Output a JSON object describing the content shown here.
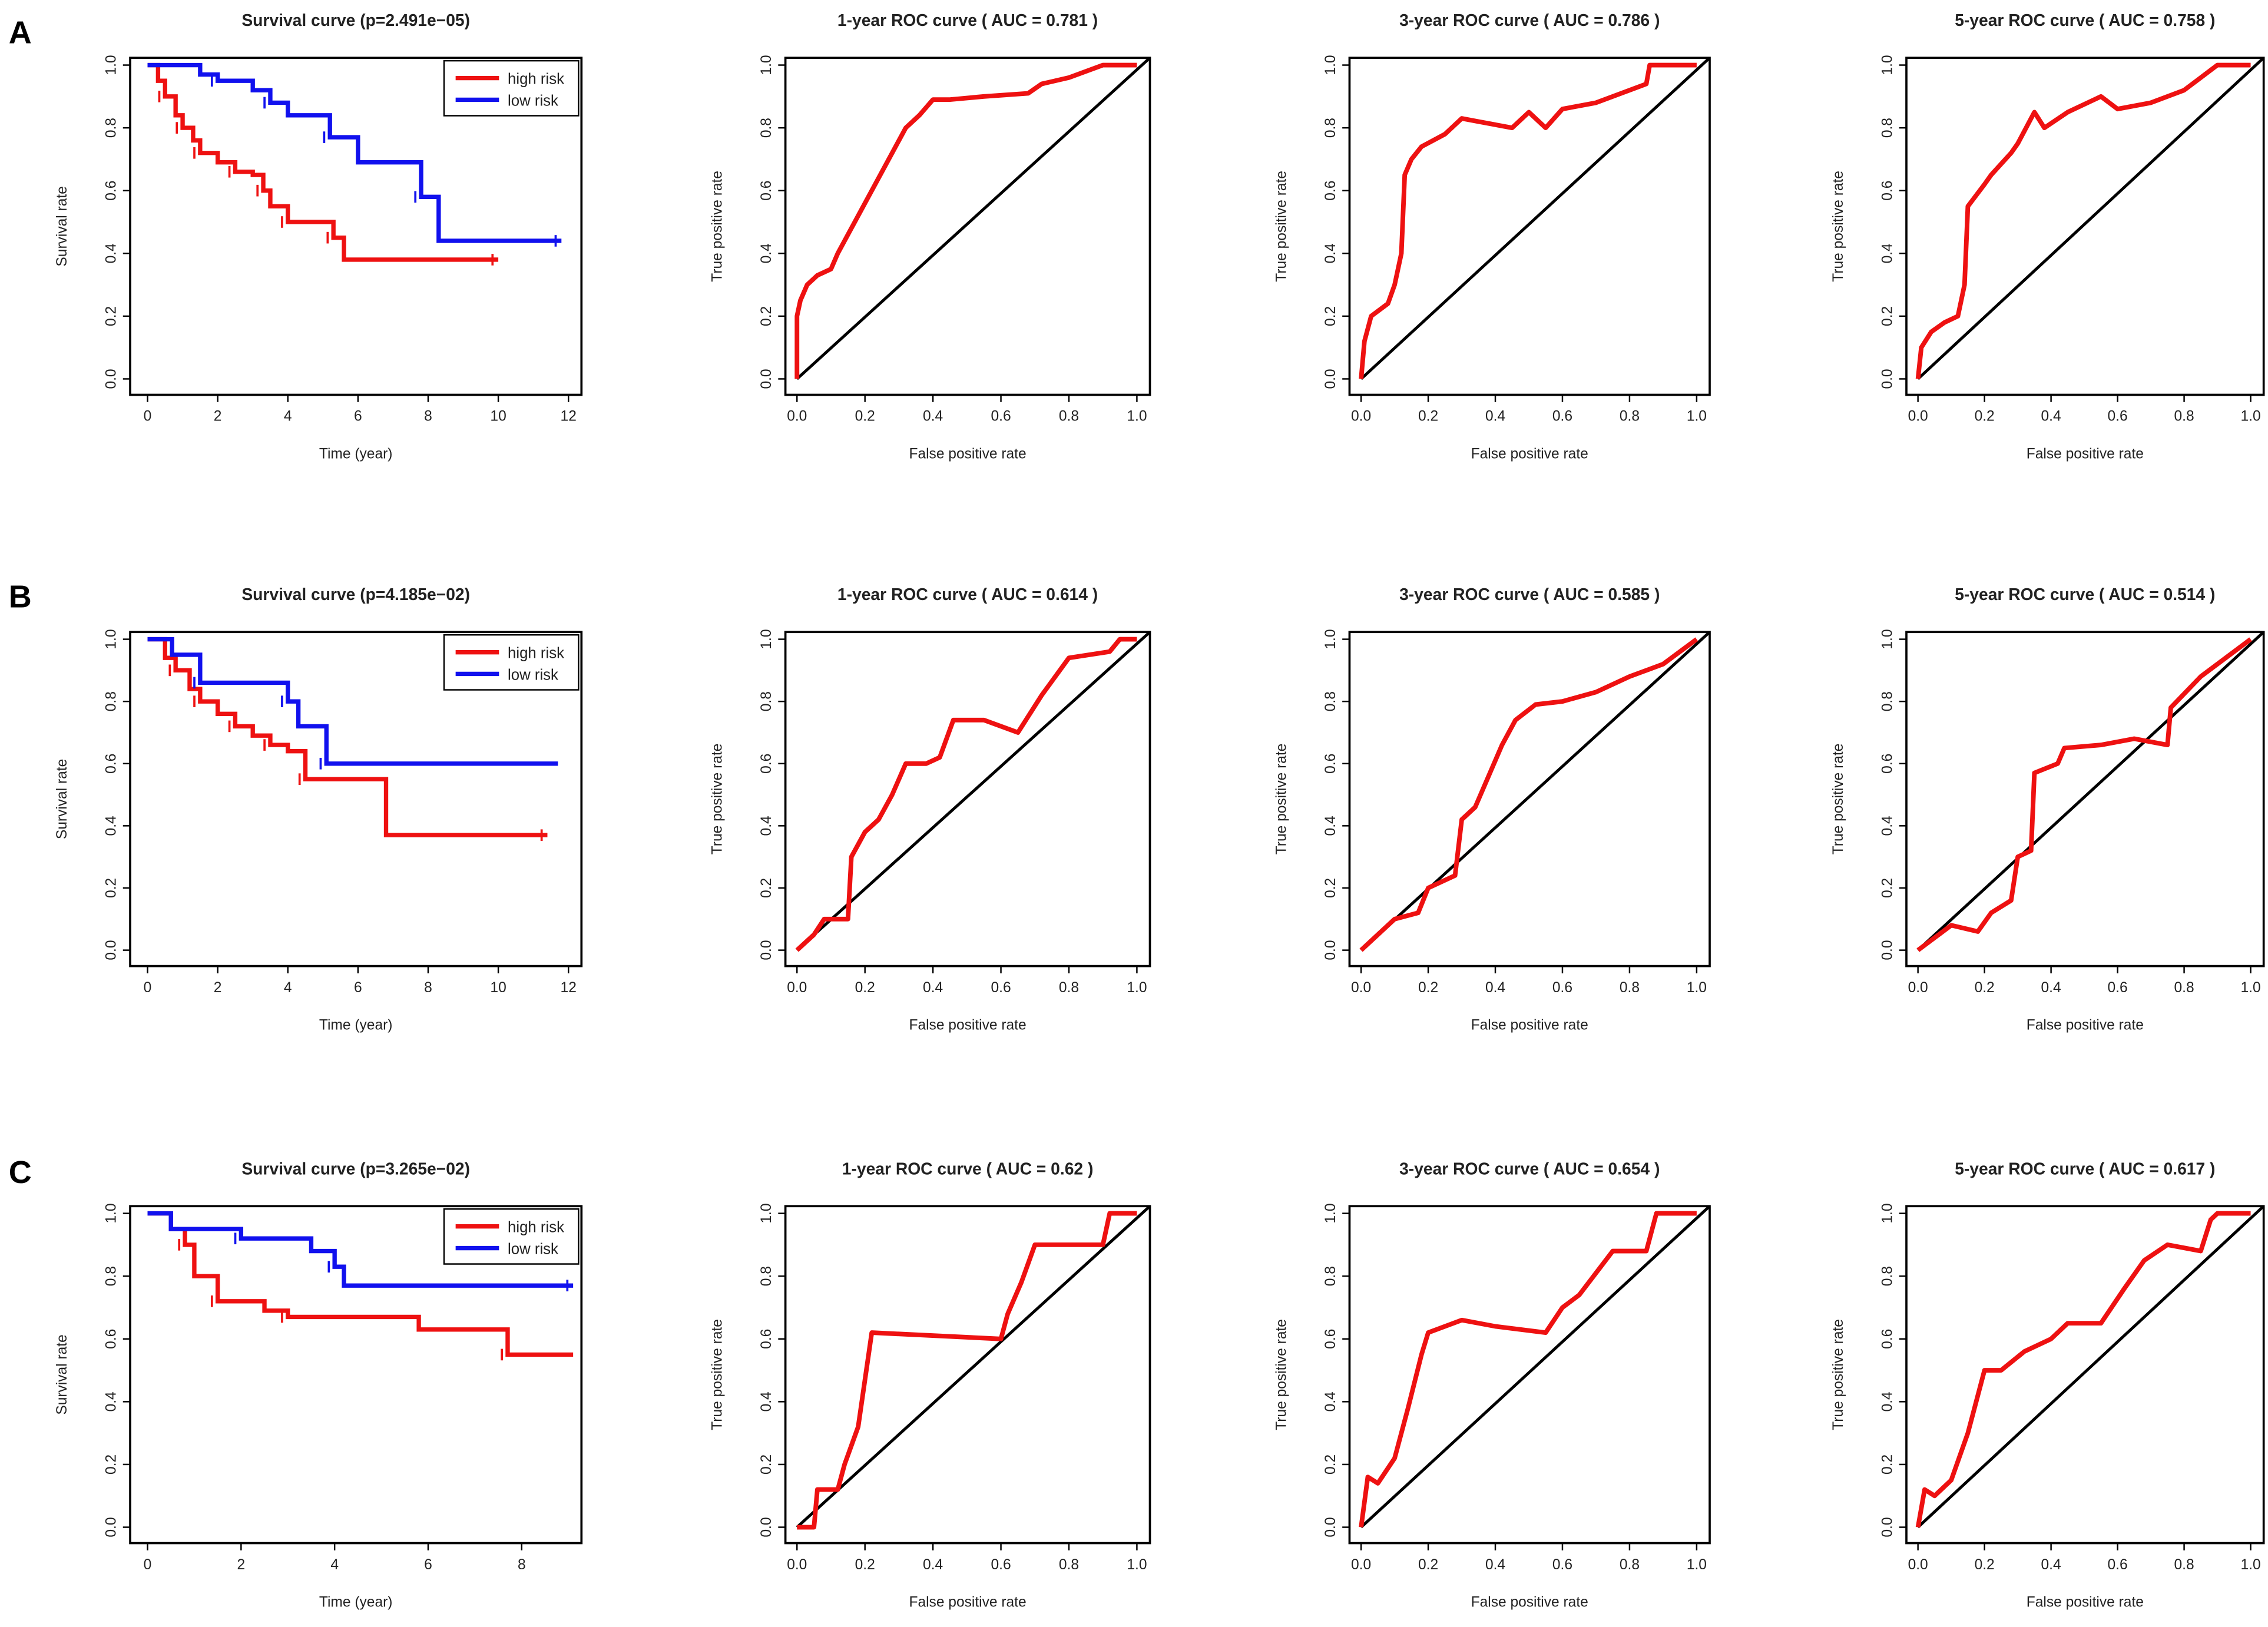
{
  "panel_labels": [
    "A",
    "B",
    "C"
  ],
  "colors": {
    "high": "#ee1111",
    "low": "#1111ee",
    "diag": "#000000",
    "roc": "#ee1111"
  },
  "chart_data": [
    {
      "row": 0,
      "col": 0,
      "type": "line",
      "title": "Survival curve (p=2.491e−05)",
      "xlabel": "Time (year)",
      "ylabel": "Survival rate",
      "xlim": [
        0,
        12
      ],
      "ylim": [
        0,
        1
      ],
      "xticks": [
        "0",
        "2",
        "4",
        "6",
        "8",
        "10",
        "12"
      ],
      "yticks": [
        "0.0",
        "0.2",
        "0.4",
        "0.6",
        "0.8",
        "1.0"
      ],
      "legend": [
        "high risk",
        "low risk"
      ],
      "legend_position": "top-right",
      "series": [
        {
          "name": "high risk",
          "x": [
            0,
            0.3,
            0.5,
            0.8,
            1,
            1.3,
            1.5,
            2,
            2.5,
            3,
            3.3,
            3.5,
            4,
            5,
            5.3,
            5.6,
            10
          ],
          "y": [
            1,
            0.95,
            0.9,
            0.84,
            0.8,
            0.76,
            0.72,
            0.69,
            0.66,
            0.65,
            0.6,
            0.55,
            0.5,
            0.5,
            0.45,
            0.38,
            0.38
          ]
        },
        {
          "name": "low risk",
          "x": [
            0,
            1.5,
            2,
            3,
            3.5,
            4,
            5.2,
            6,
            7.8,
            8.3,
            11.8
          ],
          "y": [
            1,
            0.97,
            0.95,
            0.92,
            0.88,
            0.84,
            0.77,
            0.69,
            0.58,
            0.44,
            0.44
          ]
        }
      ]
    },
    {
      "row": 0,
      "col": 1,
      "type": "line",
      "title": "1-year ROC curve ( AUC =  0.781 )",
      "auc": 0.781,
      "xlabel": "False positive rate",
      "ylabel": "True positive rate",
      "xlim": [
        0,
        1
      ],
      "ylim": [
        0,
        1
      ],
      "xticks": [
        "0.0",
        "0.2",
        "0.4",
        "0.6",
        "0.8",
        "1.0"
      ],
      "yticks": [
        "0.0",
        "0.2",
        "0.4",
        "0.6",
        "0.8",
        "1.0"
      ],
      "x": [
        0,
        0,
        0.01,
        0.03,
        0.06,
        0.1,
        0.12,
        0.16,
        0.2,
        0.24,
        0.28,
        0.32,
        0.36,
        0.4,
        0.45,
        0.55,
        0.68,
        0.72,
        0.8,
        0.85,
        0.9,
        1
      ],
      "y": [
        0,
        0.2,
        0.25,
        0.3,
        0.33,
        0.35,
        0.4,
        0.48,
        0.56,
        0.64,
        0.72,
        0.8,
        0.84,
        0.89,
        0.89,
        0.9,
        0.91,
        0.94,
        0.96,
        0.98,
        1,
        1
      ]
    },
    {
      "row": 0,
      "col": 2,
      "type": "line",
      "title": "3-year ROC curve ( AUC =  0.786 )",
      "auc": 0.786,
      "xlabel": "False positive rate",
      "ylabel": "True positive rate",
      "xlim": [
        0,
        1
      ],
      "ylim": [
        0,
        1
      ],
      "xticks": [
        "0.0",
        "0.2",
        "0.4",
        "0.6",
        "0.8",
        "1.0"
      ],
      "yticks": [
        "0.0",
        "0.2",
        "0.4",
        "0.6",
        "0.8",
        "1.0"
      ],
      "x": [
        0,
        0.01,
        0.03,
        0.08,
        0.1,
        0.12,
        0.13,
        0.15,
        0.18,
        0.25,
        0.3,
        0.35,
        0.45,
        0.5,
        0.55,
        0.6,
        0.7,
        0.8,
        0.85,
        0.86,
        0.95,
        1
      ],
      "y": [
        0,
        0.12,
        0.2,
        0.24,
        0.3,
        0.4,
        0.65,
        0.7,
        0.74,
        0.78,
        0.83,
        0.82,
        0.8,
        0.85,
        0.8,
        0.86,
        0.88,
        0.92,
        0.94,
        1,
        1,
        1
      ]
    },
    {
      "row": 0,
      "col": 3,
      "type": "line",
      "title": "5-year ROC curve ( AUC =  0.758 )",
      "auc": 0.758,
      "xlabel": "False positive rate",
      "ylabel": "True positive rate",
      "xlim": [
        0,
        1
      ],
      "ylim": [
        0,
        1
      ],
      "xticks": [
        "0.0",
        "0.2",
        "0.4",
        "0.6",
        "0.8",
        "1.0"
      ],
      "yticks": [
        "0.0",
        "0.2",
        "0.4",
        "0.6",
        "0.8",
        "1.0"
      ],
      "x": [
        0,
        0.01,
        0.04,
        0.08,
        0.12,
        0.14,
        0.15,
        0.2,
        0.22,
        0.28,
        0.3,
        0.35,
        0.38,
        0.45,
        0.55,
        0.6,
        0.7,
        0.8,
        0.85,
        0.9,
        1
      ],
      "y": [
        0,
        0.1,
        0.15,
        0.18,
        0.2,
        0.3,
        0.55,
        0.62,
        0.65,
        0.72,
        0.75,
        0.85,
        0.8,
        0.85,
        0.9,
        0.86,
        0.88,
        0.92,
        0.96,
        1,
        1
      ]
    },
    {
      "row": 1,
      "col": 0,
      "type": "line",
      "title": "Survival curve (p=4.185e−02)",
      "xlabel": "Time (year)",
      "ylabel": "Survival rate",
      "xlim": [
        0,
        12
      ],
      "ylim": [
        0,
        1
      ],
      "xticks": [
        "0",
        "2",
        "4",
        "6",
        "8",
        "10",
        "12"
      ],
      "yticks": [
        "0.0",
        "0.2",
        "0.4",
        "0.6",
        "0.8",
        "1.0"
      ],
      "legend": [
        "high risk",
        "low risk"
      ],
      "legend_position": "top-right",
      "series": [
        {
          "name": "high risk",
          "x": [
            0,
            0.5,
            0.8,
            1.2,
            1.5,
            2,
            2.5,
            3,
            3.5,
            4,
            4.5,
            6.8,
            11.4
          ],
          "y": [
            1,
            0.94,
            0.9,
            0.84,
            0.8,
            0.76,
            0.72,
            0.69,
            0.66,
            0.64,
            0.55,
            0.37,
            0.37
          ]
        },
        {
          "name": "low risk",
          "x": [
            0,
            0.7,
            1.5,
            2,
            4,
            4.3,
            5.1,
            11.7
          ],
          "y": [
            1,
            0.95,
            0.86,
            0.86,
            0.8,
            0.72,
            0.6,
            0.6
          ]
        }
      ]
    },
    {
      "row": 1,
      "col": 1,
      "type": "line",
      "title": "1-year ROC curve ( AUC =  0.614 )",
      "auc": 0.614,
      "xlabel": "False positive rate",
      "ylabel": "True positive rate",
      "xlim": [
        0,
        1
      ],
      "ylim": [
        0,
        1
      ],
      "xticks": [
        "0.0",
        "0.2",
        "0.4",
        "0.6",
        "0.8",
        "1.0"
      ],
      "yticks": [
        "0.0",
        "0.2",
        "0.4",
        "0.6",
        "0.8",
        "1.0"
      ],
      "x": [
        0,
        0.05,
        0.08,
        0.15,
        0.16,
        0.2,
        0.24,
        0.28,
        0.32,
        0.38,
        0.42,
        0.46,
        0.55,
        0.65,
        0.72,
        0.8,
        0.92,
        0.95,
        1
      ],
      "y": [
        0,
        0.05,
        0.1,
        0.1,
        0.3,
        0.38,
        0.42,
        0.5,
        0.6,
        0.6,
        0.62,
        0.74,
        0.74,
        0.7,
        0.82,
        0.94,
        0.96,
        1,
        1
      ]
    },
    {
      "row": 1,
      "col": 2,
      "type": "line",
      "title": "3-year ROC curve ( AUC =  0.585 )",
      "auc": 0.585,
      "xlabel": "False positive rate",
      "ylabel": "True positive rate",
      "xlim": [
        0,
        1
      ],
      "ylim": [
        0,
        1
      ],
      "xticks": [
        "0.0",
        "0.2",
        "0.4",
        "0.6",
        "0.8",
        "1.0"
      ],
      "yticks": [
        "0.0",
        "0.2",
        "0.4",
        "0.6",
        "0.8",
        "1.0"
      ],
      "x": [
        0,
        0.05,
        0.1,
        0.17,
        0.2,
        0.28,
        0.3,
        0.34,
        0.38,
        0.42,
        0.46,
        0.52,
        0.6,
        0.7,
        0.8,
        0.9,
        1
      ],
      "y": [
        0,
        0.05,
        0.1,
        0.12,
        0.2,
        0.24,
        0.42,
        0.46,
        0.56,
        0.66,
        0.74,
        0.79,
        0.8,
        0.83,
        0.88,
        0.92,
        1
      ]
    },
    {
      "row": 1,
      "col": 3,
      "type": "line",
      "title": "5-year ROC curve ( AUC =  0.514 )",
      "auc": 0.514,
      "xlabel": "False positive rate",
      "ylabel": "True positive rate",
      "xlim": [
        0,
        1
      ],
      "ylim": [
        0,
        1
      ],
      "xticks": [
        "0.0",
        "0.2",
        "0.4",
        "0.6",
        "0.8",
        "1.0"
      ],
      "yticks": [
        "0.0",
        "0.2",
        "0.4",
        "0.6",
        "0.8",
        "1.0"
      ],
      "x": [
        0,
        0.05,
        0.1,
        0.18,
        0.22,
        0.28,
        0.3,
        0.34,
        0.35,
        0.42,
        0.44,
        0.55,
        0.65,
        0.75,
        0.76,
        0.85,
        0.95,
        1
      ],
      "y": [
        0,
        0.04,
        0.08,
        0.06,
        0.12,
        0.16,
        0.3,
        0.32,
        0.57,
        0.6,
        0.65,
        0.66,
        0.68,
        0.66,
        0.78,
        0.88,
        0.96,
        1
      ]
    },
    {
      "row": 2,
      "col": 0,
      "type": "line",
      "title": "Survival curve (p=3.265e−02)",
      "xlabel": "Time (year)",
      "ylabel": "Survival rate",
      "xlim": [
        0,
        9
      ],
      "ylim": [
        0,
        1
      ],
      "xticks": [
        "0",
        "2",
        "4",
        "6",
        "8"
      ],
      "yticks": [
        "0.0",
        "0.2",
        "0.4",
        "0.6",
        "0.8",
        "1.0"
      ],
      "legend": [
        "high risk",
        "low risk"
      ],
      "legend_position": "top-right",
      "series": [
        {
          "name": "high risk",
          "x": [
            0,
            0.5,
            0.8,
            1,
            1.5,
            2.5,
            3,
            5.8,
            7.7,
            9.1
          ],
          "y": [
            1,
            0.95,
            0.9,
            0.8,
            0.72,
            0.69,
            0.67,
            0.63,
            0.55,
            0.55
          ]
        },
        {
          "name": "low risk",
          "x": [
            0,
            0.5,
            2,
            3.5,
            4,
            4.2,
            9.1
          ],
          "y": [
            1,
            0.95,
            0.92,
            0.88,
            0.83,
            0.77,
            0.77
          ]
        }
      ]
    },
    {
      "row": 2,
      "col": 1,
      "type": "line",
      "title": "1-year ROC curve ( AUC =  0.62 )",
      "auc": 0.62,
      "xlabel": "False positive rate",
      "ylabel": "True positive rate",
      "xlim": [
        0,
        1
      ],
      "ylim": [
        0,
        1
      ],
      "xticks": [
        "0.0",
        "0.2",
        "0.4",
        "0.6",
        "0.8",
        "1.0"
      ],
      "yticks": [
        "0.0",
        "0.2",
        "0.4",
        "0.6",
        "0.8",
        "1.0"
      ],
      "x": [
        0,
        0.05,
        0.06,
        0.12,
        0.14,
        0.18,
        0.22,
        0.6,
        0.62,
        0.66,
        0.7,
        0.74,
        0.9,
        0.92,
        1
      ],
      "y": [
        0,
        0,
        0.12,
        0.12,
        0.2,
        0.32,
        0.62,
        0.6,
        0.68,
        0.78,
        0.9,
        0.9,
        0.9,
        1,
        1
      ]
    },
    {
      "row": 2,
      "col": 2,
      "type": "line",
      "title": "3-year ROC curve ( AUC =  0.654 )",
      "auc": 0.654,
      "xlabel": "False positive rate",
      "ylabel": "True positive rate",
      "xlim": [
        0,
        1
      ],
      "ylim": [
        0,
        1
      ],
      "xticks": [
        "0.0",
        "0.2",
        "0.4",
        "0.6",
        "0.8",
        "1.0"
      ],
      "yticks": [
        "0.0",
        "0.2",
        "0.4",
        "0.6",
        "0.8",
        "1.0"
      ],
      "x": [
        0,
        0.02,
        0.05,
        0.1,
        0.14,
        0.18,
        0.2,
        0.3,
        0.4,
        0.55,
        0.6,
        0.65,
        0.75,
        0.85,
        0.88,
        1
      ],
      "y": [
        0,
        0.16,
        0.14,
        0.22,
        0.38,
        0.55,
        0.62,
        0.66,
        0.64,
        0.62,
        0.7,
        0.74,
        0.88,
        0.88,
        1,
        1
      ]
    },
    {
      "row": 2,
      "col": 3,
      "type": "line",
      "title": "5-year ROC curve ( AUC =  0.617 )",
      "auc": 0.617,
      "xlabel": "False positive rate",
      "ylabel": "True positive rate",
      "xlim": [
        0,
        1
      ],
      "ylim": [
        0,
        1
      ],
      "xticks": [
        "0.0",
        "0.2",
        "0.4",
        "0.6",
        "0.8",
        "1.0"
      ],
      "yticks": [
        "0.0",
        "0.2",
        "0.4",
        "0.6",
        "0.8",
        "1.0"
      ],
      "x": [
        0,
        0.02,
        0.05,
        0.1,
        0.15,
        0.2,
        0.25,
        0.32,
        0.4,
        0.45,
        0.55,
        0.62,
        0.68,
        0.75,
        0.85,
        0.88,
        0.9,
        1
      ],
      "y": [
        0,
        0.12,
        0.1,
        0.15,
        0.3,
        0.5,
        0.5,
        0.56,
        0.6,
        0.65,
        0.65,
        0.76,
        0.85,
        0.9,
        0.88,
        0.98,
        1,
        1
      ]
    }
  ]
}
